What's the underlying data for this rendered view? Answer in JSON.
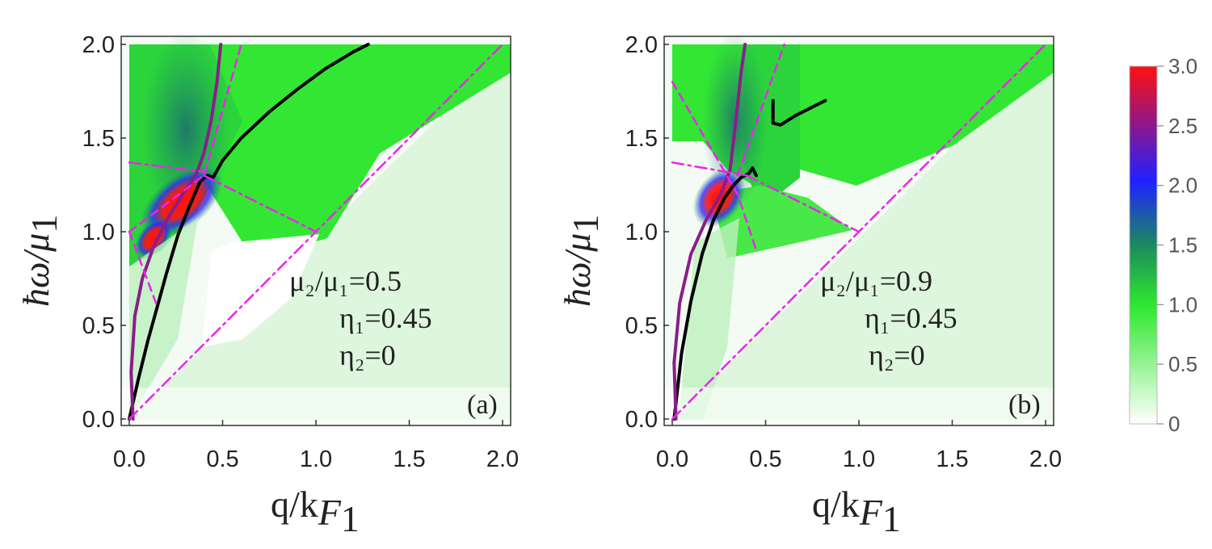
{
  "figure": {
    "colorbar": {
      "ticks": [
        "3.0",
        "2.5",
        "2.0",
        "1.5",
        "1.0",
        "0.5",
        "0"
      ],
      "range": [
        0,
        3.0
      ],
      "colors": [
        "#ffffff",
        "#2ee82e",
        "#1b8a5f",
        "#2020ff",
        "#ff1010"
      ]
    }
  },
  "chart_data": [
    {
      "type": "heatmap",
      "panel_label": "(a)",
      "xlabel_main": "q/k",
      "xlabel_sub": "F",
      "xlabel_subsub": "1",
      "ylabel_main": "ħω/μ",
      "ylabel_sub": "1",
      "xlim": [
        0,
        2.0
      ],
      "ylim": [
        0,
        2.0
      ],
      "xticks": [
        "0.0",
        "0.5",
        "1.0",
        "1.5",
        "2.0"
      ],
      "yticks": [
        "0.0",
        "0.5",
        "1.0",
        "1.5",
        "2.0"
      ],
      "annotations": [
        "μ₂/μ₁=0.5",
        "η₁=0.45",
        "η₂=0"
      ],
      "params": {
        "mu_ratio": 0.5,
        "eta1": 0.45,
        "eta2": 0
      },
      "series": [
        {
          "name": "plasmon (black)",
          "color": "#000000",
          "style": "solid",
          "x": [
            0,
            0.05,
            0.1,
            0.15,
            0.2,
            0.26,
            0.32,
            0.38,
            0.42,
            0.45,
            0.5,
            0.6,
            0.75,
            0.9,
            1.05,
            1.2,
            1.28
          ],
          "y": [
            0,
            0.22,
            0.42,
            0.6,
            0.78,
            0.98,
            1.13,
            1.27,
            1.3,
            1.29,
            1.38,
            1.5,
            1.64,
            1.76,
            1.87,
            1.96,
            2.0
          ]
        },
        {
          "name": "purple curve",
          "color": "#8a1e8a",
          "style": "solid",
          "x": [
            0.02,
            0.01,
            0.03,
            0.07,
            0.13,
            0.2,
            0.28,
            0.36,
            0.4,
            0.44,
            0.47,
            0.49
          ],
          "y": [
            0,
            0.25,
            0.55,
            0.75,
            0.92,
            1.06,
            1.19,
            1.31,
            1.42,
            1.6,
            1.8,
            2.0
          ]
        },
        {
          "name": "magenta dashed 1",
          "color": "#ee22ee",
          "style": "dashed",
          "x": [
            0,
            0.4,
            0.6
          ],
          "y": [
            1.0,
            1.3,
            2.0
          ]
        },
        {
          "name": "magenta dashed 2",
          "color": "#ee22ee",
          "style": "dashed",
          "x": [
            0,
            0.15
          ],
          "y": [
            1.0,
            0.6
          ]
        },
        {
          "name": "magenta dashdot diagonal",
          "color": "#ee22ee",
          "style": "dashdot",
          "x": [
            0,
            2.0
          ],
          "y": [
            0,
            2.0
          ]
        },
        {
          "name": "magenta dashdot upper",
          "color": "#ee22ee",
          "style": "dashdot",
          "x": [
            0,
            0.4
          ],
          "y": [
            1.37,
            1.32
          ]
        },
        {
          "name": "magenta dashdot lower",
          "color": "#ee22ee",
          "style": "dashdot",
          "x": [
            0.4,
            1.0
          ],
          "y": [
            1.3,
            1.0
          ]
        }
      ]
    },
    {
      "type": "heatmap",
      "panel_label": "(b)",
      "xlabel_main": "q/k",
      "xlabel_sub": "F",
      "xlabel_subsub": "1",
      "ylabel_main": "ħω/μ",
      "ylabel_sub": "1",
      "xlim": [
        0,
        2.0
      ],
      "ylim": [
        0,
        2.0
      ],
      "xticks": [
        "0.0",
        "0.5",
        "1.0",
        "1.5",
        "2.0"
      ],
      "yticks": [
        "0.0",
        "0.5",
        "1.0",
        "1.5",
        "2.0"
      ],
      "annotations": [
        "μ₂/μ₁=0.9",
        "η₁=0.45",
        "η₂=0"
      ],
      "params": {
        "mu_ratio": 0.9,
        "eta1": 0.45,
        "eta2": 0
      },
      "series": [
        {
          "name": "plasmon (black) lower",
          "color": "#000000",
          "style": "solid",
          "x": [
            0.01,
            0.05,
            0.1,
            0.16,
            0.22,
            0.28,
            0.33,
            0.37,
            0.41,
            0.43,
            0.45
          ],
          "y": [
            0,
            0.35,
            0.63,
            0.88,
            1.06,
            1.18,
            1.25,
            1.29,
            1.31,
            1.34,
            1.3
          ]
        },
        {
          "name": "plasmon (black) upper",
          "color": "#000000",
          "style": "solid",
          "x": [
            0.54,
            0.54,
            0.58,
            0.66,
            0.74,
            0.82
          ],
          "y": [
            1.7,
            1.58,
            1.57,
            1.62,
            1.66,
            1.7
          ]
        },
        {
          "name": "purple curve",
          "color": "#8a1e8a",
          "style": "solid",
          "x": [
            0.02,
            0.01,
            0.04,
            0.1,
            0.18,
            0.26,
            0.31,
            0.33,
            0.35,
            0.37,
            0.39
          ],
          "y": [
            0,
            0.3,
            0.62,
            0.88,
            1.06,
            1.2,
            1.33,
            1.5,
            1.68,
            1.86,
            2.0
          ]
        },
        {
          "name": "magenta dashed 1",
          "color": "#ee22ee",
          "style": "dashed",
          "x": [
            0,
            0.35,
            0.45
          ],
          "y": [
            1.8,
            1.2,
            0.9
          ]
        },
        {
          "name": "magenta dashed 2",
          "color": "#ee22ee",
          "style": "dashed",
          "x": [
            0.35,
            0.6
          ],
          "y": [
            1.3,
            2.0
          ]
        },
        {
          "name": "magenta dashdot diagonal",
          "color": "#ee22ee",
          "style": "dashdot",
          "x": [
            0,
            2.0
          ],
          "y": [
            0,
            2.0
          ]
        },
        {
          "name": "magenta dashdot upper",
          "color": "#ee22ee",
          "style": "dashdot",
          "x": [
            0,
            0.4
          ],
          "y": [
            1.37,
            1.3
          ]
        },
        {
          "name": "magenta dashdot lower",
          "color": "#ee22ee",
          "style": "dashdot",
          "x": [
            0.4,
            1.0
          ],
          "y": [
            1.3,
            1.0
          ]
        }
      ]
    }
  ]
}
